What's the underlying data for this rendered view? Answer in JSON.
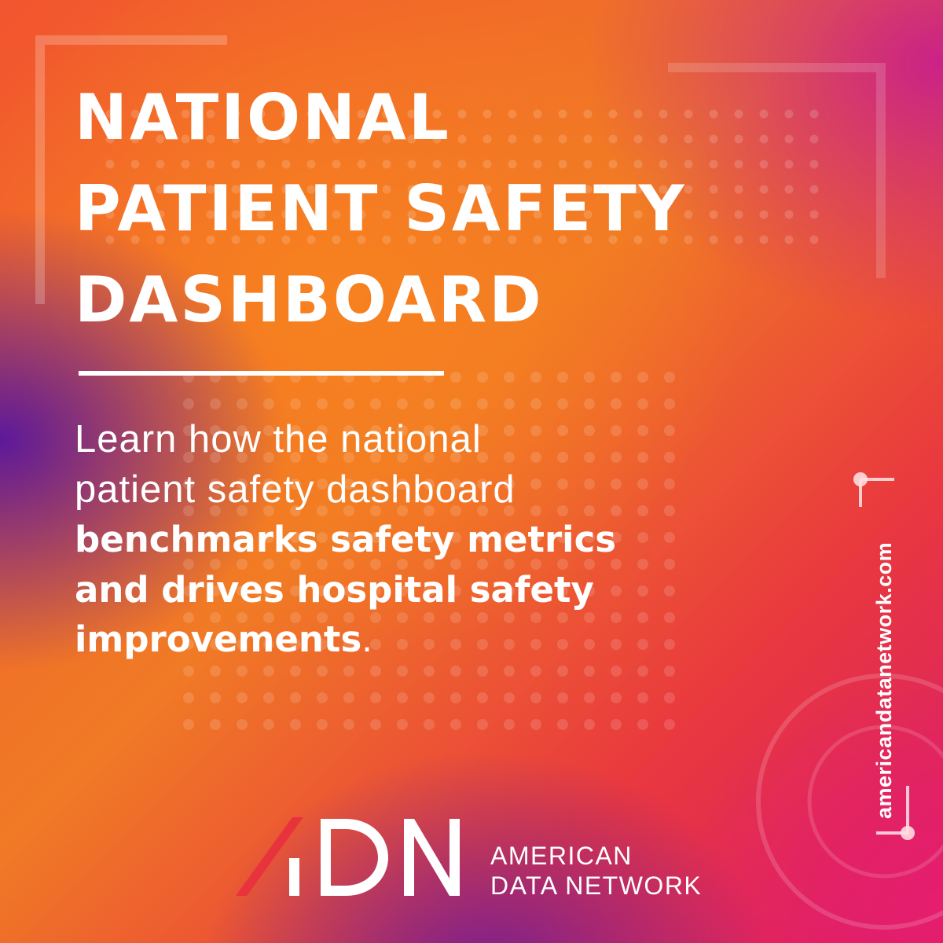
{
  "headline": {
    "line1": "NATIONAL",
    "line2": "PATIENT SAFETY",
    "line3": "DASHBOARD"
  },
  "body": {
    "line1": "Learn how the national",
    "line2": "patient safety dashboard",
    "line3": "benchmarks safety metrics",
    "line4": "and drives hospital safety",
    "line5_bold": "improvements",
    "line5_tail": "."
  },
  "side_url": "americandatanetwork.com",
  "logo": {
    "mark_name": "adn-logo-icon",
    "brand_line1": "AMERICAN",
    "brand_line2": "DATA NETWORK"
  },
  "colors": {
    "text": "#ffffff",
    "logo_accent": "#e8323c",
    "orange": "#f7821f",
    "magenta": "#d81c6a",
    "purple": "#5a149e"
  }
}
